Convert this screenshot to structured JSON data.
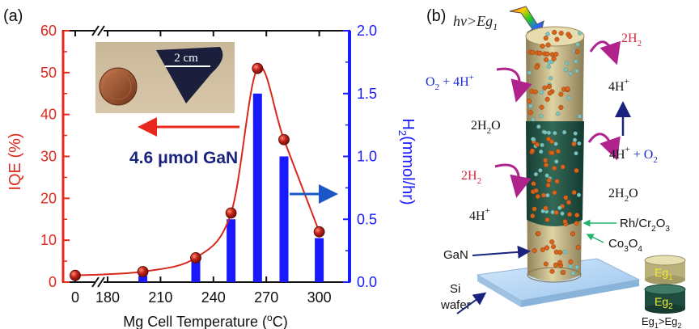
{
  "panel_a": {
    "label": "(a)",
    "annotation": "4.6 μmol GaN",
    "inset_label": "2 cm"
  },
  "panel_b": {
    "label": "(b)",
    "light_text": "hν>Eg",
    "light_sub": "1",
    "labels": {
      "h2_top": "2H",
      "h2_top_sub": "2",
      "o2_eq": "O",
      "o2_eq_sub": "2",
      "o2_eq_rest": " + 4H",
      "o2_eq_sup": "+",
      "h4_top": "4H",
      "h4_top_sup": "+",
      "h2o_left": "2H",
      "h2o_left_sub": "2",
      "h2o_left_rest": "O",
      "h4_o2": "4H",
      "h4_o2_sup": "+",
      "h4_o2_rest": " + O",
      "h4_o2_sub": "2",
      "h2_mid": "2H",
      "h2_mid_sub": "2",
      "h2o_right": "2H",
      "h2o_right_sub": "2",
      "h2o_right_rest": "O",
      "h4_bot": "4H",
      "h4_bot_sup": "+",
      "rh": "Rh/Cr",
      "rh_sub1": "2",
      "rh_mid": "O",
      "rh_sub2": "3",
      "co": "Co",
      "co_sub1": "3",
      "co_mid": "O",
      "co_sub2": "4",
      "gan": "GaN",
      "si1": "Si",
      "si2": "wafer",
      "eg1": "Eg",
      "eg1_sub": "1",
      "eg2": "Eg",
      "eg2_sub": "2",
      "eg_cmp": "Eg",
      "eg_cmp_sub1": "1",
      "eg_cmp_mid": ">Eg",
      "eg_cmp_sub2": "2"
    }
  },
  "chart_data": {
    "type": "bar+line",
    "xlabel": "Mg Cell Temperature (°C)",
    "xlabel_main": "Mg Cell Temperature (",
    "xlabel_sup": "o",
    "xlabel_end": "C)",
    "ylabel_left": "IQE (%)",
    "ylabel_right": "H",
    "ylabel_right_sub": "2",
    "ylabel_right_rest": "(mmol/hr)",
    "x_ticks": [
      "0",
      "180",
      "210",
      "240",
      "270",
      "300"
    ],
    "ylim_left": [
      0,
      60
    ],
    "ylim_right": [
      0,
      2.0
    ],
    "y_ticks_left": [
      "0",
      "10",
      "20",
      "30",
      "40",
      "50",
      "60"
    ],
    "y_ticks_right": [
      "0.0",
      "0.5",
      "1.0",
      "1.5",
      "2.0"
    ],
    "axis_break": true,
    "series": [
      {
        "kind": "line",
        "axis": "left",
        "color": "#d8281c",
        "x": [
          0,
          200,
          230,
          250,
          265,
          280,
          300
        ],
        "values": [
          1.6,
          2.5,
          5.8,
          16.5,
          51,
          34,
          12
        ]
      },
      {
        "kind": "bar",
        "axis": "right",
        "color": "#1a1aff",
        "x": [
          0,
          200,
          230,
          250,
          265,
          280,
          300
        ],
        "values": [
          0,
          0.05,
          0.2,
          0.5,
          1.5,
          1.0,
          0.35
        ]
      }
    ]
  }
}
